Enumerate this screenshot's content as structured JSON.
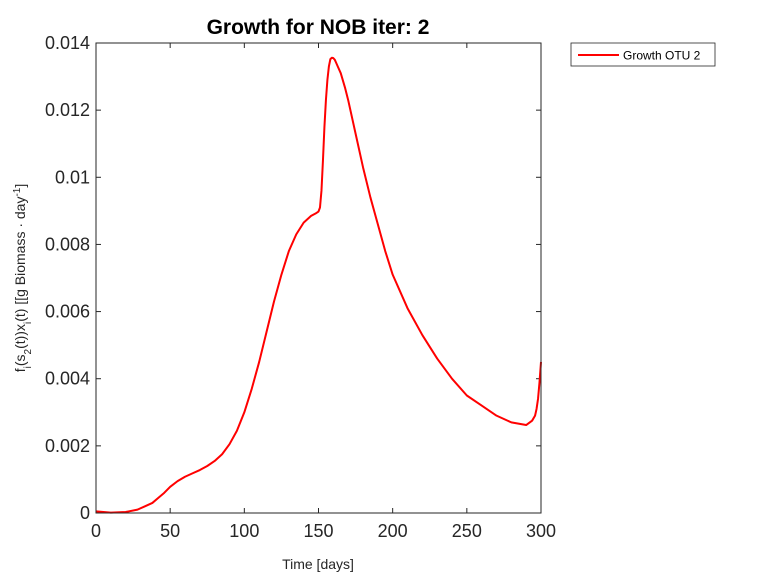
{
  "chart_data": {
    "type": "line",
    "title": "Growth for NOB iter: 2",
    "xlabel": "Time [days]",
    "ylabel": {
      "parts": [
        {
          "t": "f",
          "s": "normal"
        },
        {
          "t": "i",
          "s": "sub"
        },
        {
          "t": "(s",
          "s": "normal"
        },
        {
          "t": "2",
          "s": "sub"
        },
        {
          "t": "(t))x",
          "s": "normal"
        },
        {
          "t": "i",
          "s": "sub"
        },
        {
          "t": "(t) [[g Biomass · day",
          "s": "normal"
        },
        {
          "t": "-1",
          "s": "sup"
        },
        {
          "t": "]",
          "s": "normal"
        }
      ]
    },
    "xlim": [
      0,
      300
    ],
    "ylim": [
      0,
      0.014
    ],
    "xticks": [
      0,
      50,
      100,
      150,
      200,
      250,
      300
    ],
    "xtick_labels": [
      "0",
      "50",
      "100",
      "150",
      "200",
      "250",
      "300"
    ],
    "yticks": [
      0,
      0.002,
      0.004,
      0.006,
      0.008,
      0.01,
      0.012,
      0.014
    ],
    "ytick_labels": [
      "0",
      "0.002",
      "0.004",
      "0.006",
      "0.008",
      "0.01",
      "0.012",
      "0.014"
    ],
    "grid": false,
    "legend_position": "outside-top-right",
    "series": [
      {
        "name": "Growth OTU 2",
        "color": "#ff0000",
        "x": [
          0,
          10,
          20,
          28,
          33,
          38,
          42,
          46,
          50,
          55,
          60,
          65,
          70,
          75,
          80,
          85,
          90,
          95,
          100,
          105,
          110,
          115,
          120,
          125,
          130,
          135,
          140,
          145,
          148,
          150,
          151,
          152,
          153,
          154,
          155,
          156,
          157,
          158,
          159,
          160,
          161,
          162,
          163,
          165,
          168,
          170,
          175,
          180,
          185,
          190,
          195,
          200,
          210,
          220,
          230,
          240,
          250,
          260,
          270,
          280,
          290,
          294,
          296,
          297,
          298,
          299,
          300
        ],
        "y": [
          5e-05,
          1e-05,
          3e-05,
          0.0001,
          0.0002,
          0.0003,
          0.00045,
          0.0006,
          0.00078,
          0.00095,
          0.00108,
          0.00118,
          0.00128,
          0.0014,
          0.00155,
          0.00175,
          0.00205,
          0.00245,
          0.003,
          0.0037,
          0.0045,
          0.0054,
          0.0063,
          0.0071,
          0.0078,
          0.0083,
          0.00865,
          0.00885,
          0.00892,
          0.00898,
          0.0091,
          0.0096,
          0.0105,
          0.0115,
          0.0123,
          0.0129,
          0.0133,
          0.01352,
          0.01356,
          0.01355,
          0.0135,
          0.0134,
          0.0133,
          0.0131,
          0.01265,
          0.0123,
          0.0113,
          0.0103,
          0.0094,
          0.0086,
          0.0078,
          0.0071,
          0.0061,
          0.0053,
          0.0046,
          0.004,
          0.0035,
          0.0032,
          0.0029,
          0.0027,
          0.00262,
          0.00275,
          0.0029,
          0.0031,
          0.0034,
          0.0039,
          0.0045
        ]
      }
    ]
  }
}
